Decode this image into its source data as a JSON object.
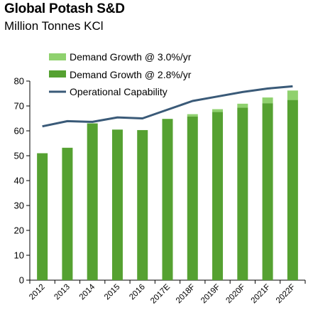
{
  "header": {
    "title": "Global Potash S&D",
    "subtitle": "Million Tonnes KCl"
  },
  "chart_data": {
    "type": "bar",
    "title": "Global Potash S&D",
    "subtitle": "Million Tonnes KCl",
    "categories": [
      "2012",
      "2013",
      "2014",
      "2015",
      "2016",
      "2017E",
      "2018F",
      "2019F",
      "2020F",
      "2021F",
      "2022F"
    ],
    "series": [
      {
        "name": "Demand Growth @ 2.8%/yr",
        "type": "bar",
        "color": "#55a131",
        "values": [
          51.0,
          53.2,
          63.0,
          60.5,
          60.3,
          64.8,
          65.8,
          67.6,
          69.3,
          71.1,
          72.4
        ]
      },
      {
        "name": "Demand Growth @ 3.0%/yr",
        "type": "bar-stacked-increment",
        "color": "#8fd16e",
        "values": [
          0,
          0,
          0,
          0,
          0,
          0,
          0.9,
          1.1,
          1.6,
          2.3,
          3.8
        ]
      },
      {
        "name": "Operational Capability",
        "type": "line",
        "color": "#3a5a78",
        "values": [
          61.8,
          63.9,
          63.6,
          65.4,
          65.0,
          68.5,
          72.0,
          73.8,
          75.6,
          77.0,
          77.9
        ]
      }
    ],
    "ylim": [
      0,
      80
    ],
    "yticks": [
      "0",
      "10",
      "20",
      "30",
      "40",
      "50",
      "60",
      "70",
      "80"
    ],
    "grid": false,
    "legend": "top-left"
  }
}
